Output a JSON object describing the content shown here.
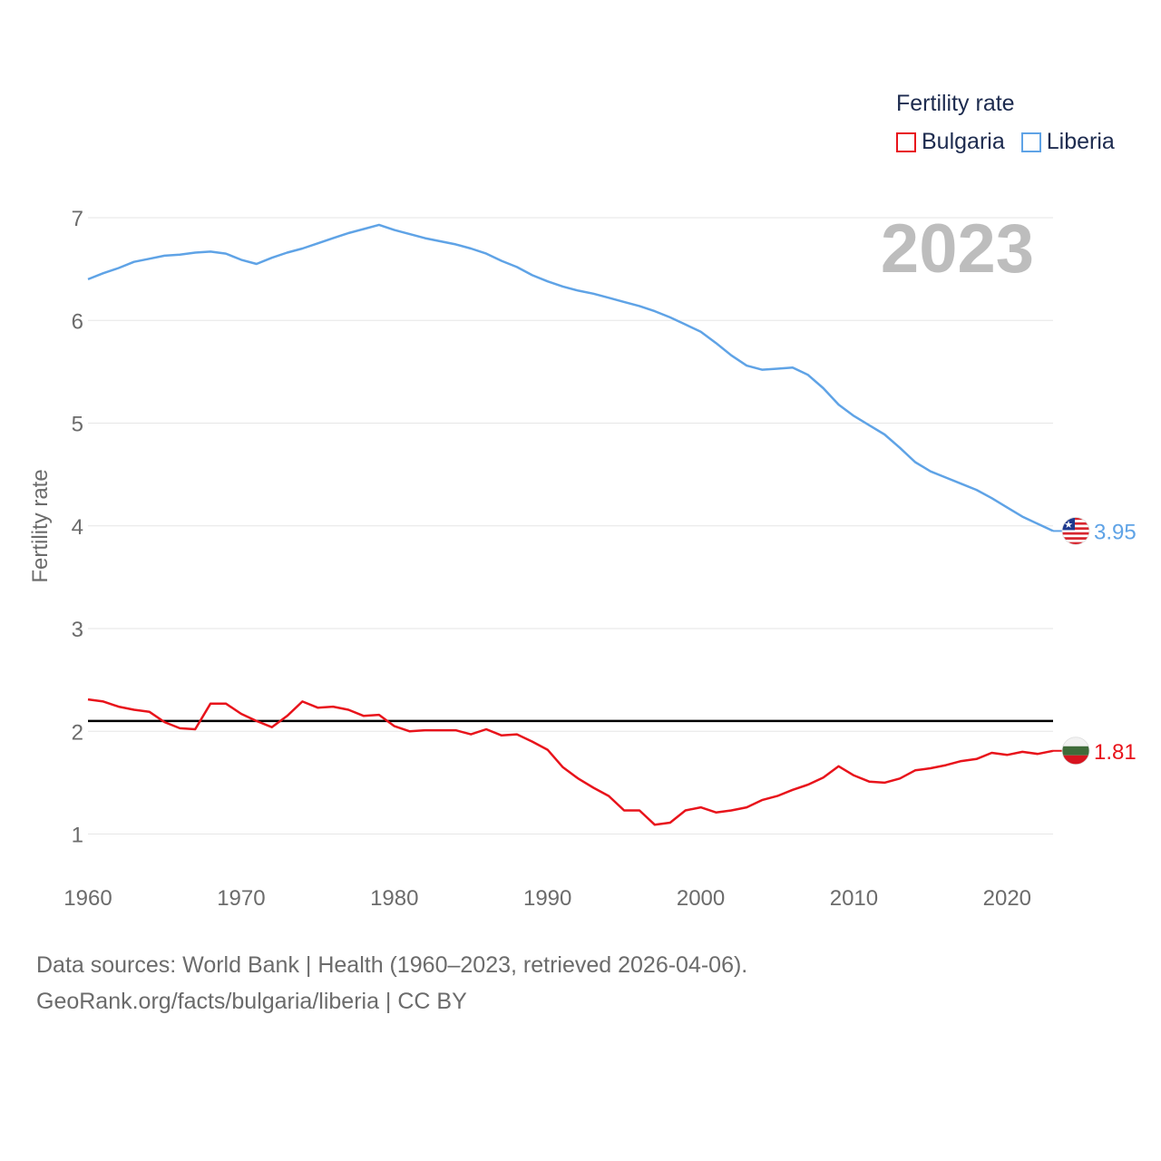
{
  "legend": {
    "title": "Fertility rate",
    "items": [
      {
        "label": "Bulgaria",
        "color": "#e8131b"
      },
      {
        "label": "Liberia",
        "color": "#5fa3e6"
      }
    ]
  },
  "year_badge": "2023",
  "footer": {
    "line1": "Data sources: World Bank | Health (1960–2023, retrieved 2026-04-06).",
    "line2": "GeoRank.org/facts/bulgaria/liberia | CC BY"
  },
  "chart_data": {
    "type": "line",
    "ylabel": "Fertility rate",
    "xlabel": "",
    "xlim": [
      1960,
      2023
    ],
    "ylim": [
      0.6,
      7.1
    ],
    "x_ticks": [
      1960,
      1970,
      1980,
      1990,
      2000,
      2010,
      2020
    ],
    "y_ticks": [
      1,
      2,
      3,
      4,
      5,
      6,
      7
    ],
    "reference_line": {
      "y": 2.1,
      "color": "#000000"
    },
    "x": [
      1960,
      1961,
      1962,
      1963,
      1964,
      1965,
      1966,
      1967,
      1968,
      1969,
      1970,
      1971,
      1972,
      1973,
      1974,
      1975,
      1976,
      1977,
      1978,
      1979,
      1980,
      1981,
      1982,
      1983,
      1984,
      1985,
      1986,
      1987,
      1988,
      1989,
      1990,
      1991,
      1992,
      1993,
      1994,
      1995,
      1996,
      1997,
      1998,
      1999,
      2000,
      2001,
      2002,
      2003,
      2004,
      2005,
      2006,
      2007,
      2008,
      2009,
      2010,
      2011,
      2012,
      2013,
      2014,
      2015,
      2016,
      2017,
      2018,
      2019,
      2020,
      2021,
      2022,
      2023
    ],
    "series": [
      {
        "name": "Liberia",
        "color": "#5fa3e6",
        "end_label": "3.95",
        "flag": "liberia-flag",
        "values": [
          6.4,
          6.46,
          6.51,
          6.57,
          6.6,
          6.63,
          6.64,
          6.66,
          6.67,
          6.65,
          6.59,
          6.55,
          6.61,
          6.66,
          6.7,
          6.75,
          6.8,
          6.85,
          6.89,
          6.93,
          6.88,
          6.84,
          6.8,
          6.77,
          6.74,
          6.7,
          6.65,
          6.58,
          6.52,
          6.44,
          6.38,
          6.33,
          6.29,
          6.26,
          6.22,
          6.18,
          6.14,
          6.09,
          6.03,
          5.96,
          5.89,
          5.78,
          5.66,
          5.56,
          5.52,
          5.53,
          5.54,
          5.47,
          5.34,
          5.18,
          5.07,
          4.98,
          4.89,
          4.76,
          4.62,
          4.53,
          4.47,
          4.41,
          4.35,
          4.27,
          4.18,
          4.09,
          4.02,
          3.95
        ]
      },
      {
        "name": "Bulgaria",
        "color": "#e8131b",
        "end_label": "1.81",
        "flag": "bulgaria-flag",
        "values": [
          2.31,
          2.29,
          2.24,
          2.21,
          2.19,
          2.09,
          2.03,
          2.02,
          2.27,
          2.27,
          2.17,
          2.1,
          2.04,
          2.15,
          2.29,
          2.23,
          2.24,
          2.21,
          2.15,
          2.16,
          2.05,
          2.0,
          2.01,
          2.01,
          2.01,
          1.97,
          2.02,
          1.96,
          1.97,
          1.9,
          1.82,
          1.65,
          1.54,
          1.45,
          1.37,
          1.23,
          1.23,
          1.09,
          1.11,
          1.23,
          1.26,
          1.21,
          1.23,
          1.26,
          1.33,
          1.37,
          1.43,
          1.48,
          1.55,
          1.66,
          1.57,
          1.51,
          1.5,
          1.54,
          1.62,
          1.64,
          1.67,
          1.71,
          1.73,
          1.79,
          1.77,
          1.8,
          1.78,
          1.81
        ]
      }
    ]
  }
}
